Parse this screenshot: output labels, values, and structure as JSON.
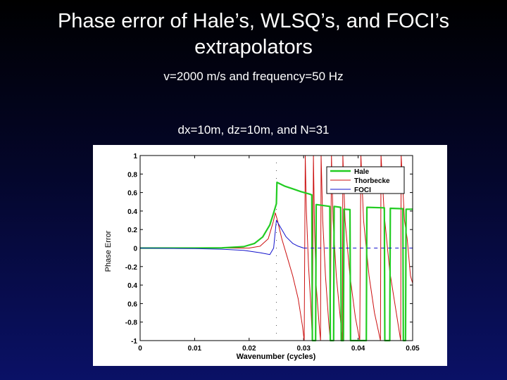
{
  "slide": {
    "title_line1": "Phase error of Hale’s, WLSQ’s, and FOCI’s",
    "title_line2": "extrapolators",
    "subtitle1": "v=2000 m/s and frequency=50 Hz",
    "subtitle2": "dx=10m, dz=10m, and N=31"
  },
  "chart_data": {
    "type": "line",
    "xlabel": "Wavenumber (cycles)",
    "ylabel": "Phase Error",
    "xlim": [
      0,
      0.05
    ],
    "ylim": [
      -1,
      1
    ],
    "x_ticks": [
      "0",
      "0.01",
      "0.02",
      "0.03",
      "0.04",
      "0.05"
    ],
    "y_ticks": [
      "1",
      "0.8",
      "0.6",
      "0.4",
      "0.2",
      "0",
      "-0.2",
      "0.4",
      "0.6",
      "-0.8",
      "-1"
    ],
    "legend_position": "top-right",
    "colors": {
      "hale": "#22cc22",
      "thorbecke": "#cc1111",
      "foci": "#1111cc"
    },
    "series": [
      {
        "name": "Hale",
        "style": "solid",
        "points": [
          [
            0,
            0
          ],
          [
            0.01,
            0
          ],
          [
            0.015,
            0.002
          ],
          [
            0.019,
            0.015
          ],
          [
            0.021,
            0.05
          ],
          [
            0.0225,
            0.12
          ],
          [
            0.0238,
            0.25
          ],
          [
            0.0245,
            0.38
          ],
          [
            0.025,
            0.48
          ],
          [
            0.0251,
            0.71
          ],
          [
            0.0265,
            0.67
          ],
          [
            0.028,
            0.64
          ],
          [
            0.0295,
            0.61
          ],
          [
            0.031,
            0.585
          ],
          [
            0.0315,
            0.575
          ],
          [
            0.0316,
            -1
          ],
          [
            0.0322,
            -1
          ],
          [
            0.0323,
            0.47
          ],
          [
            0.0348,
            0.45
          ],
          [
            0.0349,
            -1
          ],
          [
            0.0355,
            -1
          ],
          [
            0.0356,
            0.45
          ],
          [
            0.0368,
            0.44
          ],
          [
            0.0369,
            -1
          ],
          [
            0.0373,
            -1
          ],
          [
            0.0374,
            0.42
          ],
          [
            0.0385,
            0.415
          ],
          [
            0.0386,
            -1
          ],
          [
            0.0415,
            -1
          ],
          [
            0.0416,
            0.44
          ],
          [
            0.0448,
            0.435
          ],
          [
            0.0449,
            -1
          ],
          [
            0.0458,
            -1
          ],
          [
            0.0459,
            0.43
          ],
          [
            0.0482,
            0.425
          ],
          [
            0.0483,
            -1
          ],
          [
            0.0487,
            -1
          ],
          [
            0.0488,
            0.42
          ],
          [
            0.05,
            0.42
          ]
        ]
      },
      {
        "name": "Thorbecke",
        "style": "solid",
        "points": [
          [
            0,
            0
          ],
          [
            0.015,
            0
          ],
          [
            0.02,
            0
          ],
          [
            0.022,
            0.02
          ],
          [
            0.0235,
            0.1
          ],
          [
            0.0244,
            0.28
          ],
          [
            0.0248,
            0.38
          ],
          [
            0.0252,
            0.3
          ],
          [
            0.026,
            0.1
          ],
          [
            0.027,
            -0.1
          ],
          [
            0.028,
            -0.3
          ],
          [
            0.029,
            -0.55
          ],
          [
            0.0298,
            -0.85
          ],
          [
            0.0301,
            -1
          ],
          [
            0.0303,
            1
          ],
          [
            0.0305,
            0.4
          ],
          [
            0.0309,
            -0.2
          ],
          [
            0.0313,
            -0.6
          ],
          [
            0.0316,
            -1
          ],
          [
            0.0318,
            1
          ],
          [
            0.032,
            0.2
          ],
          [
            0.0323,
            -0.4
          ],
          [
            0.0328,
            -0.8
          ],
          [
            0.0331,
            -1
          ],
          [
            0.0332,
            1
          ],
          [
            0.0335,
            0.3
          ],
          [
            0.034,
            -0.3
          ],
          [
            0.0346,
            -0.8
          ],
          [
            0.0349,
            -1
          ],
          [
            0.0351,
            1
          ],
          [
            0.0354,
            0.3
          ],
          [
            0.036,
            -0.3
          ],
          [
            0.0368,
            -0.8
          ],
          [
            0.0371,
            -1
          ],
          [
            0.0372,
            1
          ],
          [
            0.0376,
            0.3
          ],
          [
            0.0385,
            -0.3
          ],
          [
            0.0395,
            -0.75
          ],
          [
            0.0403,
            -1
          ],
          [
            0.0405,
            1
          ],
          [
            0.041,
            0.3
          ],
          [
            0.042,
            -0.3
          ],
          [
            0.043,
            -0.7
          ],
          [
            0.0441,
            -1
          ],
          [
            0.0442,
            1
          ],
          [
            0.0448,
            0.35
          ],
          [
            0.0458,
            -0.25
          ],
          [
            0.047,
            -0.7
          ],
          [
            0.0478,
            -1
          ],
          [
            0.0479,
            1
          ],
          [
            0.0485,
            0.3
          ],
          [
            0.049,
            0.1
          ],
          [
            0.0496,
            -0.3
          ],
          [
            0.05,
            -0.38
          ]
        ]
      },
      {
        "name": "FOCI",
        "style": "solid",
        "points": [
          [
            0,
            0
          ],
          [
            0.005,
            -0.003
          ],
          [
            0.01,
            -0.006
          ],
          [
            0.015,
            -0.012
          ],
          [
            0.019,
            -0.025
          ],
          [
            0.022,
            -0.05
          ],
          [
            0.0238,
            -0.07
          ],
          [
            0.0245,
            0.0
          ],
          [
            0.025,
            0.3
          ],
          [
            0.0258,
            0.22
          ],
          [
            0.0268,
            0.12
          ],
          [
            0.028,
            0.05
          ],
          [
            0.029,
            0.02
          ],
          [
            0.03,
            0.0
          ]
        ]
      },
      {
        "name": "FOCI",
        "style": "dashed",
        "points": [
          [
            0.03,
            0
          ],
          [
            0.05,
            0
          ]
        ]
      }
    ]
  }
}
